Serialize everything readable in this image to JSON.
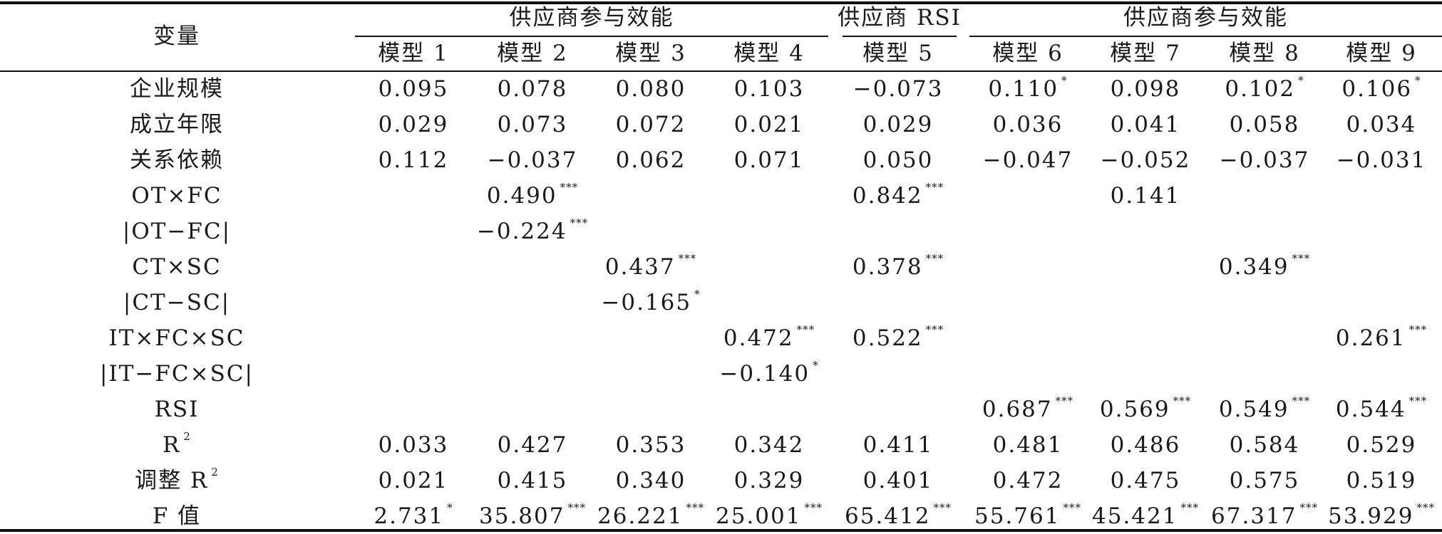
{
  "table": {
    "variable_header": "变量",
    "groups": [
      {
        "label": "供应商参与效能",
        "span": [
          1,
          4
        ]
      },
      {
        "label": "供应商 RSI",
        "span": [
          5,
          5
        ]
      },
      {
        "label": "供应商参与效能",
        "span": [
          6,
          9
        ]
      }
    ],
    "models": [
      "模型 1",
      "模型 2",
      "模型 3",
      "模型 4",
      "模型 5",
      "模型 6",
      "模型 7",
      "模型 8",
      "模型 9"
    ],
    "rows": [
      {
        "label": "企业规模",
        "cells": [
          {
            "v": "0.095",
            "s": ""
          },
          {
            "v": "0.078",
            "s": ""
          },
          {
            "v": "0.080",
            "s": ""
          },
          {
            "v": "0.103",
            "s": ""
          },
          {
            "v": "−0.073",
            "s": ""
          },
          {
            "v": "0.110",
            "s": "*"
          },
          {
            "v": "0.098",
            "s": ""
          },
          {
            "v": "0.102",
            "s": "*"
          },
          {
            "v": "0.106",
            "s": "*"
          }
        ]
      },
      {
        "label": "成立年限",
        "cells": [
          {
            "v": "0.029",
            "s": ""
          },
          {
            "v": "0.073",
            "s": ""
          },
          {
            "v": "0.072",
            "s": ""
          },
          {
            "v": "0.021",
            "s": ""
          },
          {
            "v": "0.029",
            "s": ""
          },
          {
            "v": "0.036",
            "s": ""
          },
          {
            "v": "0.041",
            "s": ""
          },
          {
            "v": "0.058",
            "s": ""
          },
          {
            "v": "0.034",
            "s": ""
          }
        ]
      },
      {
        "label": "关系依赖",
        "cells": [
          {
            "v": "0.112",
            "s": ""
          },
          {
            "v": "−0.037",
            "s": ""
          },
          {
            "v": "0.062",
            "s": ""
          },
          {
            "v": "0.071",
            "s": ""
          },
          {
            "v": "0.050",
            "s": ""
          },
          {
            "v": "−0.047",
            "s": ""
          },
          {
            "v": "−0.052",
            "s": ""
          },
          {
            "v": "−0.037",
            "s": ""
          },
          {
            "v": "−0.031",
            "s": ""
          }
        ]
      },
      {
        "label": "OT×FC",
        "cells": [
          {
            "v": "",
            "s": ""
          },
          {
            "v": "0.490",
            "s": "***"
          },
          {
            "v": "",
            "s": ""
          },
          {
            "v": "",
            "s": ""
          },
          {
            "v": "0.842",
            "s": "***"
          },
          {
            "v": "",
            "s": ""
          },
          {
            "v": "0.141",
            "s": ""
          },
          {
            "v": "",
            "s": ""
          },
          {
            "v": "",
            "s": ""
          }
        ]
      },
      {
        "label": "|OT−FC|",
        "cells": [
          {
            "v": "",
            "s": ""
          },
          {
            "v": "−0.224",
            "s": "***"
          },
          {
            "v": "",
            "s": ""
          },
          {
            "v": "",
            "s": ""
          },
          {
            "v": "",
            "s": ""
          },
          {
            "v": "",
            "s": ""
          },
          {
            "v": "",
            "s": ""
          },
          {
            "v": "",
            "s": ""
          },
          {
            "v": "",
            "s": ""
          }
        ]
      },
      {
        "label": "CT×SC",
        "cells": [
          {
            "v": "",
            "s": ""
          },
          {
            "v": "",
            "s": ""
          },
          {
            "v": "0.437",
            "s": "***"
          },
          {
            "v": "",
            "s": ""
          },
          {
            "v": "0.378",
            "s": "***"
          },
          {
            "v": "",
            "s": ""
          },
          {
            "v": "",
            "s": ""
          },
          {
            "v": "0.349",
            "s": "***"
          },
          {
            "v": "",
            "s": ""
          }
        ]
      },
      {
        "label": "|CT−SC|",
        "cells": [
          {
            "v": "",
            "s": ""
          },
          {
            "v": "",
            "s": ""
          },
          {
            "v": "−0.165",
            "s": "*"
          },
          {
            "v": "",
            "s": ""
          },
          {
            "v": "",
            "s": ""
          },
          {
            "v": "",
            "s": ""
          },
          {
            "v": "",
            "s": ""
          },
          {
            "v": "",
            "s": ""
          },
          {
            "v": "",
            "s": ""
          }
        ]
      },
      {
        "label": "IT×FC×SC",
        "cells": [
          {
            "v": "",
            "s": ""
          },
          {
            "v": "",
            "s": ""
          },
          {
            "v": "",
            "s": ""
          },
          {
            "v": "0.472",
            "s": "***"
          },
          {
            "v": "0.522",
            "s": "***"
          },
          {
            "v": "",
            "s": ""
          },
          {
            "v": "",
            "s": ""
          },
          {
            "v": "",
            "s": ""
          },
          {
            "v": "0.261",
            "s": "***"
          }
        ]
      },
      {
        "label": "|IT−FC×SC|",
        "cells": [
          {
            "v": "",
            "s": ""
          },
          {
            "v": "",
            "s": ""
          },
          {
            "v": "",
            "s": ""
          },
          {
            "v": "−0.140",
            "s": "*"
          },
          {
            "v": "",
            "s": ""
          },
          {
            "v": "",
            "s": ""
          },
          {
            "v": "",
            "s": ""
          },
          {
            "v": "",
            "s": ""
          },
          {
            "v": "",
            "s": ""
          }
        ]
      },
      {
        "label": "RSI",
        "cells": [
          {
            "v": "",
            "s": ""
          },
          {
            "v": "",
            "s": ""
          },
          {
            "v": "",
            "s": ""
          },
          {
            "v": "",
            "s": ""
          },
          {
            "v": "",
            "s": ""
          },
          {
            "v": "0.687",
            "s": "***"
          },
          {
            "v": "0.569",
            "s": "***"
          },
          {
            "v": "0.549",
            "s": "***"
          },
          {
            "v": "0.544",
            "s": "***"
          }
        ]
      },
      {
        "label": "R",
        "label_sup": "2",
        "cells": [
          {
            "v": "0.033",
            "s": ""
          },
          {
            "v": "0.427",
            "s": ""
          },
          {
            "v": "0.353",
            "s": ""
          },
          {
            "v": "0.342",
            "s": ""
          },
          {
            "v": "0.411",
            "s": ""
          },
          {
            "v": "0.481",
            "s": ""
          },
          {
            "v": "0.486",
            "s": ""
          },
          {
            "v": "0.584",
            "s": ""
          },
          {
            "v": "0.529",
            "s": ""
          }
        ]
      },
      {
        "label": "调整 R",
        "label_sup": "2",
        "cells": [
          {
            "v": "0.021",
            "s": ""
          },
          {
            "v": "0.415",
            "s": ""
          },
          {
            "v": "0.340",
            "s": ""
          },
          {
            "v": "0.329",
            "s": ""
          },
          {
            "v": "0.401",
            "s": ""
          },
          {
            "v": "0.472",
            "s": ""
          },
          {
            "v": "0.475",
            "s": ""
          },
          {
            "v": "0.575",
            "s": ""
          },
          {
            "v": "0.519",
            "s": ""
          }
        ]
      },
      {
        "label": "F 值",
        "cells": [
          {
            "v": "2.731",
            "s": "*"
          },
          {
            "v": "35.807",
            "s": "***"
          },
          {
            "v": "26.221",
            "s": "***"
          },
          {
            "v": "25.001",
            "s": "***"
          },
          {
            "v": "65.412",
            "s": "***"
          },
          {
            "v": "55.761",
            "s": "***"
          },
          {
            "v": "45.421",
            "s": "***"
          },
          {
            "v": "67.317",
            "s": "***"
          },
          {
            "v": "53.929",
            "s": "***"
          }
        ]
      }
    ]
  }
}
